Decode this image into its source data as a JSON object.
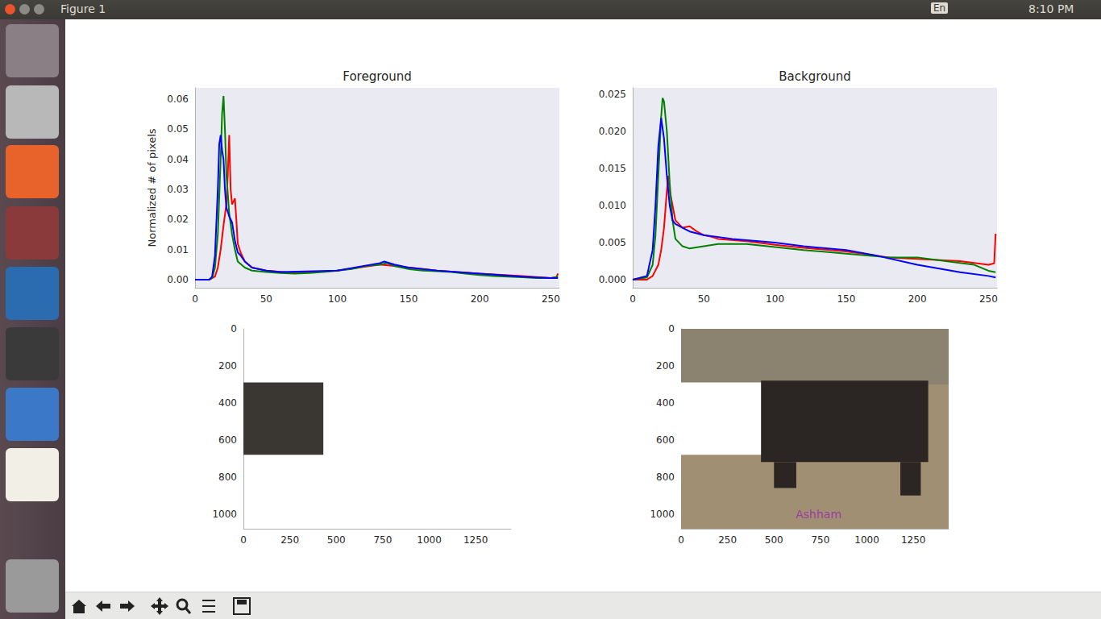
{
  "window": {
    "title": "Figure 1",
    "indicator": "En",
    "clock": "8:10 PM"
  },
  "chart_data": [
    {
      "type": "line",
      "title": "Foreground",
      "y_label": "Normalized # of pixels",
      "xlim": [
        0,
        256
      ],
      "xticks": [
        0,
        50,
        100,
        150,
        200,
        250
      ],
      "ylim": [
        -0.0027,
        0.0637
      ],
      "yticks": [
        {
          "value": 0,
          "label": "0.00"
        },
        0.01,
        0.02,
        0.03,
        0.04,
        0.05,
        0.06
      ],
      "grid": false,
      "series": [
        {
          "color": "#ff0000",
          "x": [
            0,
            10,
            14,
            16,
            18,
            20,
            22,
            23,
            24,
            25,
            26,
            27,
            28,
            29,
            30,
            32,
            35,
            40,
            50,
            70,
            100,
            130,
            140,
            150,
            170,
            200,
            230,
            250,
            254,
            255
          ],
          "values": [
            0,
            0,
            0.001,
            0.004,
            0.01,
            0.018,
            0.025,
            0.035,
            0.048,
            0.03,
            0.025,
            0.026,
            0.027,
            0.02,
            0.012,
            0.009,
            0.006,
            0.004,
            0.003,
            0.0022,
            0.003,
            0.005,
            0.0045,
            0.004,
            0.003,
            0.002,
            0.0012,
            0.0005,
            0.0008,
            0.002
          ]
        },
        {
          "color": "#008000",
          "x": [
            0,
            10,
            12,
            14,
            16,
            18,
            19,
            20,
            21,
            22,
            24,
            26,
            28,
            30,
            35,
            40,
            50,
            60,
            70,
            80,
            90,
            100,
            110,
            120,
            130,
            135,
            140,
            150,
            160,
            170,
            180,
            190,
            200,
            210,
            220,
            230,
            240,
            250,
            255
          ],
          "values": [
            0,
            0,
            0.0005,
            0.004,
            0.015,
            0.04,
            0.055,
            0.061,
            0.05,
            0.035,
            0.022,
            0.015,
            0.01,
            0.006,
            0.004,
            0.003,
            0.0025,
            0.0022,
            0.002,
            0.0022,
            0.0025,
            0.003,
            0.0035,
            0.0045,
            0.005,
            0.0055,
            0.0045,
            0.0035,
            0.003,
            0.0028,
            0.0025,
            0.002,
            0.0015,
            0.0012,
            0.001,
            0.0008,
            0.0005,
            0.0005,
            0.001
          ]
        },
        {
          "color": "#0000ff",
          "x": [
            0,
            10,
            12,
            14,
            16,
            17,
            18,
            19,
            20,
            21,
            22,
            24,
            26,
            28,
            30,
            32,
            35,
            40,
            50,
            60,
            100,
            130,
            133,
            140,
            150,
            170,
            200,
            230,
            250,
            255
          ],
          "values": [
            0,
            0,
            0.001,
            0.008,
            0.03,
            0.045,
            0.048,
            0.043,
            0.04,
            0.03,
            0.024,
            0.021,
            0.019,
            0.013,
            0.009,
            0.008,
            0.006,
            0.004,
            0.003,
            0.0025,
            0.003,
            0.0055,
            0.006,
            0.005,
            0.004,
            0.003,
            0.002,
            0.001,
            0.0005,
            0.0005
          ]
        }
      ]
    },
    {
      "type": "line",
      "title": "Background",
      "xlim": [
        0,
        256
      ],
      "xticks": [
        0,
        50,
        100,
        150,
        200,
        250
      ],
      "ylim": [
        -0.00109,
        0.02587
      ],
      "yticks": [
        {
          "value": 0,
          "label": "0.000"
        },
        0.005,
        {
          "value": 0.01,
          "label": "0.010"
        },
        0.015,
        {
          "value": 0.02,
          "label": "0.020"
        },
        0.025
      ],
      "grid": false,
      "series": [
        {
          "color": "#ff0000",
          "x": [
            0,
            10,
            14,
            18,
            20,
            22,
            24,
            25,
            26,
            28,
            30,
            35,
            40,
            45,
            50,
            55,
            60,
            80,
            100,
            120,
            150,
            180,
            200,
            230,
            250,
            254,
            255
          ],
          "values": [
            0,
            0,
            0.0005,
            0.002,
            0.004,
            0.007,
            0.012,
            0.014,
            0.012,
            0.01,
            0.008,
            0.007,
            0.0072,
            0.0065,
            0.006,
            0.0058,
            0.0055,
            0.0052,
            0.0047,
            0.0043,
            0.0038,
            0.003,
            0.0028,
            0.0025,
            0.002,
            0.0022,
            0.0062
          ]
        },
        {
          "color": "#008000",
          "x": [
            0,
            10,
            14,
            16,
            18,
            20,
            21,
            22,
            24,
            26,
            28,
            30,
            35,
            40,
            50,
            60,
            80,
            100,
            120,
            150,
            180,
            200,
            220,
            240,
            250,
            255
          ],
          "values": [
            0,
            0.0003,
            0.002,
            0.006,
            0.014,
            0.022,
            0.0245,
            0.024,
            0.02,
            0.013,
            0.008,
            0.0055,
            0.0045,
            0.0042,
            0.0045,
            0.0048,
            0.0048,
            0.0044,
            0.004,
            0.0035,
            0.003,
            0.003,
            0.0025,
            0.002,
            0.0012,
            0.001
          ]
        },
        {
          "color": "#0000ff",
          "x": [
            0,
            10,
            14,
            16,
            18,
            20,
            22,
            24,
            26,
            28,
            30,
            35,
            40,
            50,
            70,
            100,
            120,
            150,
            170,
            200,
            230,
            250,
            255
          ],
          "values": [
            0,
            0.0005,
            0.004,
            0.01,
            0.018,
            0.0218,
            0.019,
            0.014,
            0.01,
            0.008,
            0.0075,
            0.007,
            0.0065,
            0.006,
            0.0055,
            0.005,
            0.0045,
            0.004,
            0.0033,
            0.002,
            0.001,
            0.0005,
            0.0003
          ]
        }
      ]
    },
    {
      "type": "image",
      "xlim": [
        0,
        1440
      ],
      "xticks": [
        0,
        250,
        500,
        750,
        1000,
        1250
      ],
      "ylim": [
        1080,
        0
      ],
      "yticks": [
        0,
        200,
        400,
        600,
        800,
        1000
      ],
      "grid": false,
      "series": [
        {
          "type": "rect",
          "color": "#3a3632",
          "values": [
            [
              0,
              290,
              430,
              680
            ]
          ]
        }
      ]
    },
    {
      "type": "image",
      "xlim": [
        0,
        1440
      ],
      "xticks": [
        0,
        250,
        500,
        750,
        1000,
        1250
      ],
      "ylim": [
        1080,
        0
      ],
      "yticks": [
        0,
        200,
        400,
        600,
        800,
        1000
      ],
      "grid": false,
      "series": [
        {
          "type": "rect",
          "color": "#a08f72",
          "values": [
            [
              0,
              0,
              1440,
              1080
            ]
          ]
        },
        {
          "type": "rect",
          "color": "#8c8270",
          "values": [
            [
              0,
              0,
              1440,
              300
            ]
          ]
        },
        {
          "type": "rect",
          "color": "#2b2623",
          "values": [
            [
              430,
              280,
              1330,
              720
            ],
            [
              500,
              720,
              620,
              860
            ],
            [
              1180,
              720,
              1290,
              900
            ]
          ]
        },
        {
          "type": "rect",
          "color": "#ffffff",
          "values": [
            [
              0,
              290,
              430,
              680
            ]
          ]
        }
      ],
      "annotations": [
        {
          "text": "Ashham",
          "x": 740,
          "y": 1000,
          "color": "#9c27b0"
        }
      ]
    }
  ]
}
